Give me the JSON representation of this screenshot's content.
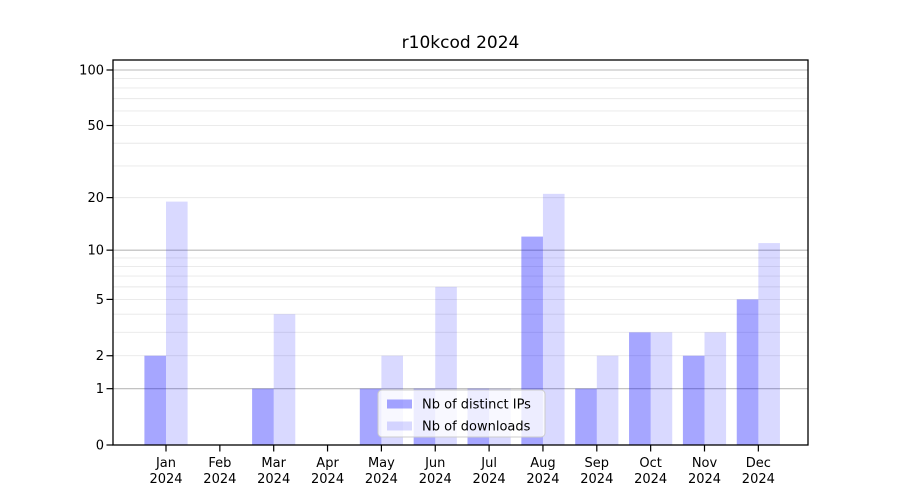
{
  "figure_title": "r10kcod 2024",
  "chart_data": {
    "type": "bar",
    "title": "r10kcod 2024",
    "categories": [
      {
        "label": "Jan",
        "sub": "2024"
      },
      {
        "label": "Feb",
        "sub": "2024"
      },
      {
        "label": "Mar",
        "sub": "2024"
      },
      {
        "label": "Apr",
        "sub": "2024"
      },
      {
        "label": "May",
        "sub": "2024"
      },
      {
        "label": "Jun",
        "sub": "2024"
      },
      {
        "label": "Jul",
        "sub": "2024"
      },
      {
        "label": "Aug",
        "sub": "2024"
      },
      {
        "label": "Sep",
        "sub": "2024"
      },
      {
        "label": "Oct",
        "sub": "2024"
      },
      {
        "label": "Nov",
        "sub": "2024"
      },
      {
        "label": "Dec",
        "sub": "2024"
      }
    ],
    "series": [
      {
        "name": "Nb of distinct IPs",
        "color": "#0000ff",
        "opacity": 0.35,
        "values": [
          2,
          0,
          1,
          0,
          1,
          1,
          1,
          12,
          1,
          3,
          2,
          5
        ]
      },
      {
        "name": "Nb of downloads",
        "color": "#0000ff",
        "opacity": 0.15,
        "values": [
          19,
          0,
          4,
          0,
          2,
          6,
          1,
          21,
          2,
          3,
          3,
          11
        ]
      }
    ],
    "y_axis": {
      "scale": "log10(1+x)",
      "range": [
        0,
        100
      ],
      "ticks": [
        0,
        1,
        2,
        5,
        10,
        20,
        50,
        100
      ],
      "major_gridlines": [
        1,
        10,
        100
      ],
      "minor_gridlines": [
        2,
        3,
        4,
        5,
        6,
        7,
        8,
        9,
        20,
        30,
        40,
        50,
        60,
        70,
        80,
        90
      ]
    },
    "legend": {
      "position": "lower center",
      "labels": [
        "Nb of distinct IPs",
        "Nb of downloads"
      ]
    },
    "colors": {
      "background": "#ffffff",
      "frame": "#000000",
      "major_grid": "#b9b9b9",
      "minor_grid": "#e8e8e8",
      "legend_border": "#cccccc",
      "legend_bg": "#ffffff"
    }
  }
}
